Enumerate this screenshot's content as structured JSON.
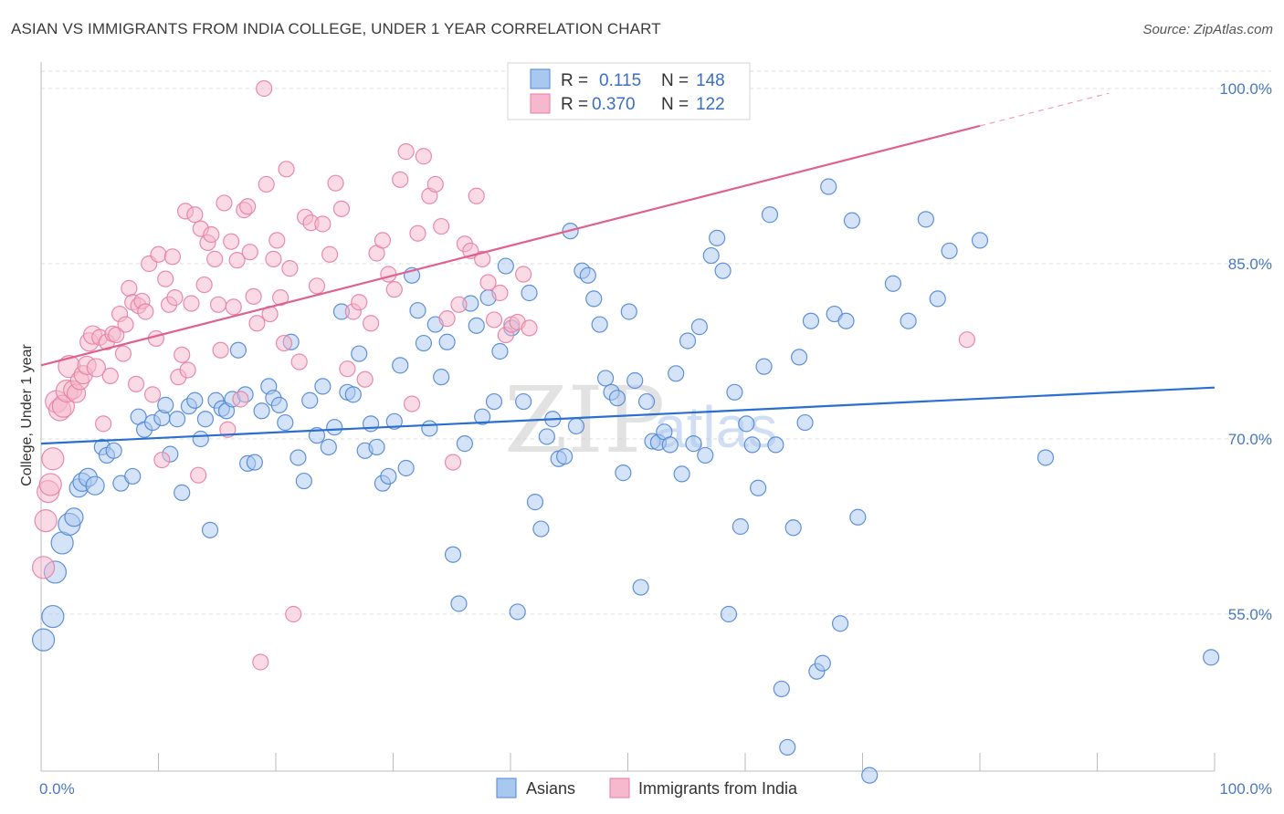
{
  "header": {
    "title": "ASIAN VS IMMIGRANTS FROM INDIA COLLEGE, UNDER 1 YEAR CORRELATION CHART",
    "source": "Source: ZipAtlas.com"
  },
  "watermark": {
    "zip": "ZIP",
    "atlas": "atlas"
  },
  "colors": {
    "blue_fill": "#a9c8f0",
    "blue_stroke": "#4f86d6",
    "blue_line": "#2a6fd0",
    "pink_fill": "#f6b8cc",
    "pink_stroke": "#e77fa0",
    "pink_line": "#e0608e",
    "grid": "#dddddd",
    "tick_text": "#4a78c2"
  },
  "chart_data": {
    "type": "scatter",
    "title": "ASIAN VS IMMIGRANTS FROM INDIA COLLEGE, UNDER 1 YEAR CORRELATION CHART",
    "xlabel": "",
    "ylabel": "College, Under 1 year",
    "xlim": [
      0,
      100
    ],
    "ylim": [
      40,
      101.5
    ],
    "x_tick_labels": [
      "0.0%",
      "100.0%"
    ],
    "y_ticks": [
      55,
      70,
      85,
      100
    ],
    "y_tick_labels": [
      "55.0%",
      "70.0%",
      "85.0%",
      "100.0%"
    ],
    "grid": "horizontal dashed",
    "legend": {
      "placement": "top-center",
      "entries": [
        {
          "r_label": "R =",
          "r_value": "0.115",
          "n_label": "N =",
          "n_value": "148"
        },
        {
          "r_label": "R =",
          "r_value": "0.370",
          "n_label": "N =",
          "n_value": "122"
        }
      ]
    },
    "series": [
      {
        "name": "Asians",
        "color": "#4f86d6",
        "trend": {
          "x": [
            0,
            100
          ],
          "y": [
            69.6,
            74.4
          ]
        },
        "points": [
          [
            0.2,
            52.8
          ],
          [
            1.0,
            54.8
          ],
          [
            1.2,
            58.6
          ],
          [
            1.8,
            61.1
          ],
          [
            2.4,
            62.7
          ],
          [
            2.8,
            63.3
          ],
          [
            3.2,
            65.8
          ],
          [
            3.5,
            66.3
          ],
          [
            4.0,
            66.7
          ],
          [
            4.6,
            66.0
          ],
          [
            5.2,
            69.3
          ],
          [
            5.6,
            68.6
          ],
          [
            6.2,
            69.0
          ],
          [
            6.8,
            66.2
          ],
          [
            7.8,
            66.8
          ],
          [
            8.3,
            71.9
          ],
          [
            8.8,
            70.8
          ],
          [
            9.5,
            71.4
          ],
          [
            10.3,
            71.8
          ],
          [
            10.6,
            72.9
          ],
          [
            11.0,
            68.7
          ],
          [
            11.6,
            71.7
          ],
          [
            12.0,
            65.4
          ],
          [
            12.6,
            72.8
          ],
          [
            13.1,
            73.3
          ],
          [
            13.6,
            70.0
          ],
          [
            14.0,
            71.7
          ],
          [
            14.4,
            62.2
          ],
          [
            14.9,
            73.3
          ],
          [
            15.4,
            72.6
          ],
          [
            15.8,
            72.4
          ],
          [
            16.3,
            73.4
          ],
          [
            16.8,
            77.6
          ],
          [
            17.4,
            73.8
          ],
          [
            17.6,
            67.9
          ],
          [
            18.2,
            68.0
          ],
          [
            18.8,
            72.4
          ],
          [
            19.4,
            74.5
          ],
          [
            19.8,
            73.5
          ],
          [
            20.3,
            72.9
          ],
          [
            20.8,
            71.4
          ],
          [
            21.3,
            78.3
          ],
          [
            21.9,
            68.4
          ],
          [
            22.4,
            66.4
          ],
          [
            22.9,
            73.3
          ],
          [
            23.5,
            70.3
          ],
          [
            24.0,
            74.5
          ],
          [
            24.5,
            69.3
          ],
          [
            25.0,
            71.0
          ],
          [
            25.6,
            80.9
          ],
          [
            26.1,
            74.0
          ],
          [
            26.6,
            73.8
          ],
          [
            27.1,
            77.3
          ],
          [
            27.6,
            69.0
          ],
          [
            28.1,
            71.3
          ],
          [
            28.6,
            69.3
          ],
          [
            29.1,
            66.2
          ],
          [
            29.6,
            66.8
          ],
          [
            30.1,
            71.5
          ],
          [
            30.6,
            76.3
          ],
          [
            31.1,
            67.5
          ],
          [
            31.6,
            84.0
          ],
          [
            32.1,
            81.0
          ],
          [
            32.6,
            78.2
          ],
          [
            33.1,
            70.9
          ],
          [
            33.6,
            79.8
          ],
          [
            34.1,
            75.3
          ],
          [
            34.6,
            78.3
          ],
          [
            35.1,
            60.1
          ],
          [
            35.6,
            55.9
          ],
          [
            36.1,
            69.6
          ],
          [
            36.6,
            81.6
          ],
          [
            37.1,
            79.7
          ],
          [
            37.6,
            71.9
          ],
          [
            38.1,
            82.1
          ],
          [
            38.6,
            73.2
          ],
          [
            39.1,
            77.5
          ],
          [
            39.6,
            84.8
          ],
          [
            40.1,
            79.5
          ],
          [
            40.6,
            55.2
          ],
          [
            41.1,
            73.2
          ],
          [
            41.6,
            82.5
          ],
          [
            42.1,
            64.6
          ],
          [
            42.6,
            62.3
          ],
          [
            43.1,
            70.2
          ],
          [
            43.6,
            71.7
          ],
          [
            44.1,
            68.3
          ],
          [
            44.6,
            68.5
          ],
          [
            45.1,
            87.8
          ],
          [
            45.6,
            71.1
          ],
          [
            46.1,
            84.4
          ],
          [
            46.6,
            84.0
          ],
          [
            47.1,
            82.0
          ],
          [
            47.6,
            79.8
          ],
          [
            48.1,
            75.2
          ],
          [
            48.6,
            74.0
          ],
          [
            49.1,
            73.5
          ],
          [
            49.6,
            67.1
          ],
          [
            50.1,
            80.9
          ],
          [
            50.6,
            75.0
          ],
          [
            51.1,
            57.3
          ],
          [
            51.6,
            73.2
          ],
          [
            52.1,
            69.8
          ],
          [
            52.6,
            69.7
          ],
          [
            53.1,
            70.6
          ],
          [
            53.6,
            69.5
          ],
          [
            54.1,
            75.6
          ],
          [
            54.6,
            67.0
          ],
          [
            55.1,
            78.4
          ],
          [
            55.6,
            69.6
          ],
          [
            56.1,
            79.6
          ],
          [
            56.6,
            68.6
          ],
          [
            57.1,
            85.7
          ],
          [
            57.6,
            87.2
          ],
          [
            58.1,
            84.4
          ],
          [
            58.6,
            55.0
          ],
          [
            59.1,
            74.0
          ],
          [
            59.6,
            62.5
          ],
          [
            60.1,
            71.3
          ],
          [
            60.6,
            69.5
          ],
          [
            61.1,
            65.8
          ],
          [
            61.6,
            76.2
          ],
          [
            62.1,
            89.2
          ],
          [
            62.6,
            69.5
          ],
          [
            63.1,
            48.6
          ],
          [
            63.6,
            43.6
          ],
          [
            64.1,
            62.4
          ],
          [
            64.6,
            77.0
          ],
          [
            65.1,
            71.4
          ],
          [
            65.6,
            80.1
          ],
          [
            66.1,
            50.1
          ],
          [
            66.6,
            50.8
          ],
          [
            67.1,
            91.6
          ],
          [
            67.6,
            80.7
          ],
          [
            68.1,
            54.2
          ],
          [
            68.6,
            80.1
          ],
          [
            69.1,
            88.7
          ],
          [
            69.6,
            63.3
          ],
          [
            70.6,
            41.2
          ],
          [
            72.6,
            83.3
          ],
          [
            73.9,
            80.1
          ],
          [
            75.4,
            88.8
          ],
          [
            76.4,
            82.0
          ],
          [
            77.4,
            86.1
          ],
          [
            80.0,
            87.0
          ],
          [
            85.6,
            68.4
          ],
          [
            99.7,
            51.3
          ]
        ]
      },
      {
        "name": "Immigrants from India",
        "color": "#e77fa0",
        "trend": {
          "x": [
            0,
            80
          ],
          "y": [
            76.3,
            96.8
          ]
        },
        "trend_dashed_ext": {
          "x": [
            80,
            91
          ],
          "y": [
            96.8,
            99.6
          ]
        },
        "points": [
          [
            0.2,
            59.0
          ],
          [
            0.4,
            63.0
          ],
          [
            0.6,
            65.5
          ],
          [
            0.8,
            66.1
          ],
          [
            1.0,
            68.3
          ],
          [
            1.3,
            73.2
          ],
          [
            1.6,
            72.5
          ],
          [
            1.9,
            72.8
          ],
          [
            2.2,
            74.1
          ],
          [
            2.4,
            76.2
          ],
          [
            2.7,
            74.2
          ],
          [
            3.0,
            73.9
          ],
          [
            3.3,
            75.0
          ],
          [
            3.6,
            75.5
          ],
          [
            3.9,
            76.3
          ],
          [
            4.1,
            78.3
          ],
          [
            4.4,
            78.9
          ],
          [
            4.7,
            76.1
          ],
          [
            5.0,
            78.7
          ],
          [
            5.3,
            71.3
          ],
          [
            5.6,
            78.3
          ],
          [
            5.9,
            75.4
          ],
          [
            6.1,
            79.0
          ],
          [
            6.4,
            78.9
          ],
          [
            6.7,
            80.7
          ],
          [
            7.0,
            77.3
          ],
          [
            7.2,
            79.8
          ],
          [
            7.5,
            82.9
          ],
          [
            7.8,
            81.7
          ],
          [
            8.1,
            74.7
          ],
          [
            8.3,
            81.4
          ],
          [
            8.6,
            81.8
          ],
          [
            8.9,
            80.9
          ],
          [
            9.2,
            85.0
          ],
          [
            9.5,
            73.8
          ],
          [
            9.8,
            78.6
          ],
          [
            10.0,
            85.8
          ],
          [
            10.3,
            68.2
          ],
          [
            10.6,
            83.7
          ],
          [
            10.9,
            81.5
          ],
          [
            11.2,
            85.6
          ],
          [
            11.4,
            82.1
          ],
          [
            11.7,
            75.3
          ],
          [
            12.0,
            77.2
          ],
          [
            12.3,
            89.5
          ],
          [
            12.5,
            75.9
          ],
          [
            12.8,
            81.6
          ],
          [
            13.1,
            89.2
          ],
          [
            13.4,
            66.9
          ],
          [
            13.6,
            88.0
          ],
          [
            13.9,
            83.2
          ],
          [
            14.2,
            86.8
          ],
          [
            14.5,
            87.5
          ],
          [
            14.8,
            85.4
          ],
          [
            15.1,
            81.5
          ],
          [
            15.3,
            77.6
          ],
          [
            15.6,
            90.2
          ],
          [
            15.9,
            70.8
          ],
          [
            16.2,
            86.9
          ],
          [
            16.4,
            81.3
          ],
          [
            16.7,
            85.3
          ],
          [
            17.0,
            73.4
          ],
          [
            17.3,
            89.6
          ],
          [
            17.6,
            89.9
          ],
          [
            17.8,
            86.0
          ],
          [
            18.1,
            82.2
          ],
          [
            18.4,
            79.9
          ],
          [
            18.7,
            50.9
          ],
          [
            19.0,
            100.0
          ],
          [
            19.2,
            91.8
          ],
          [
            19.5,
            80.7
          ],
          [
            19.8,
            85.4
          ],
          [
            20.1,
            87.0
          ],
          [
            20.4,
            82.1
          ],
          [
            20.7,
            78.2
          ],
          [
            20.9,
            93.1
          ],
          [
            21.2,
            84.6
          ],
          [
            21.5,
            55.0
          ],
          [
            22.0,
            76.6
          ],
          [
            22.5,
            89.0
          ],
          [
            23.0,
            88.5
          ],
          [
            23.5,
            83.1
          ],
          [
            24.0,
            88.4
          ],
          [
            24.6,
            85.8
          ],
          [
            25.1,
            91.9
          ],
          [
            25.6,
            89.7
          ],
          [
            26.1,
            76.0
          ],
          [
            26.6,
            80.9
          ],
          [
            27.1,
            81.7
          ],
          [
            27.6,
            75.1
          ],
          [
            28.1,
            79.9
          ],
          [
            28.6,
            85.9
          ],
          [
            29.1,
            87.0
          ],
          [
            29.6,
            84.1
          ],
          [
            30.1,
            82.8
          ],
          [
            30.6,
            92.2
          ],
          [
            31.1,
            94.6
          ],
          [
            31.6,
            73.0
          ],
          [
            32.1,
            87.6
          ],
          [
            32.6,
            94.2
          ],
          [
            33.1,
            90.8
          ],
          [
            33.6,
            91.8
          ],
          [
            34.1,
            88.2
          ],
          [
            34.6,
            80.3
          ],
          [
            35.1,
            68.0
          ],
          [
            35.6,
            81.5
          ],
          [
            36.1,
            86.7
          ],
          [
            36.6,
            86.1
          ],
          [
            37.1,
            90.8
          ],
          [
            37.6,
            85.4
          ],
          [
            38.1,
            83.4
          ],
          [
            38.6,
            80.2
          ],
          [
            39.1,
            82.5
          ],
          [
            39.6,
            78.9
          ],
          [
            40.1,
            79.8
          ],
          [
            40.6,
            80.0
          ],
          [
            41.1,
            84.1
          ],
          [
            41.6,
            79.5
          ],
          [
            78.9,
            78.5
          ]
        ]
      }
    ]
  },
  "bottom_legend": [
    {
      "label": "Asians",
      "color": "#a9c8f0"
    },
    {
      "label": "Immigrants from India",
      "color": "#f6b8cc"
    }
  ]
}
